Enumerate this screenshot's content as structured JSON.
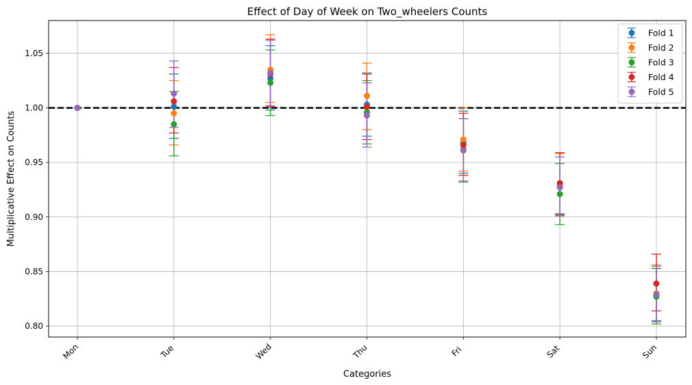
{
  "chart_data": {
    "type": "scatter",
    "title": "Effect of Day of Week on Two_wheelers Counts",
    "xlabel": "Categories",
    "ylabel": "Multiplicative Effect on Counts",
    "categories": [
      "Mon",
      "Tue",
      "Wed",
      "Thu",
      "Fri",
      "Sat",
      "Sun"
    ],
    "ylim": [
      0.79,
      1.08
    ],
    "yticks": [
      "0.80",
      "0.85",
      "0.90",
      "0.95",
      "1.00",
      "1.05"
    ],
    "reference_line": 1.0,
    "grid": true,
    "legend_position": "top-right",
    "series": [
      {
        "name": "Fold 1",
        "color": "#1f77b4",
        "values": [
          1.0,
          1.001,
          1.027,
          1.003,
          0.968,
          0.928,
          0.828
        ],
        "lower": [
          1.0,
          0.972,
          0.998,
          0.974,
          0.94,
          0.903,
          0.805
        ],
        "upper": [
          1.0,
          1.031,
          1.057,
          1.032,
          0.997,
          0.955,
          0.853
        ]
      },
      {
        "name": "Fold 2",
        "color": "#ff7f0e",
        "values": [
          1.0,
          0.995,
          1.035,
          1.011,
          0.971,
          0.93,
          0.83
        ],
        "lower": [
          1.0,
          0.966,
          1.005,
          0.98,
          0.942,
          0.902,
          0.804
        ],
        "upper": [
          1.0,
          1.025,
          1.067,
          1.041,
          1.0,
          0.958,
          0.856
        ]
      },
      {
        "name": "Fold 3",
        "color": "#2ca02c",
        "values": [
          1.0,
          0.985,
          1.023,
          0.996,
          0.962,
          0.921,
          0.827
        ],
        "lower": [
          1.0,
          0.956,
          0.993,
          0.967,
          0.932,
          0.893,
          0.802
        ],
        "upper": [
          1.0,
          1.015,
          1.053,
          1.025,
          0.99,
          0.949,
          0.853
        ]
      },
      {
        "name": "Fold 4",
        "color": "#d62728",
        "values": [
          1.0,
          1.006,
          1.031,
          1.001,
          0.966,
          0.931,
          0.839
        ],
        "lower": [
          1.0,
          0.977,
          1.001,
          0.971,
          0.938,
          0.902,
          0.814
        ],
        "upper": [
          1.0,
          1.037,
          1.063,
          1.031,
          0.995,
          0.959,
          0.866
        ]
      },
      {
        "name": "Fold 5",
        "color": "#9467bd",
        "values": [
          1.0,
          1.013,
          1.032,
          0.993,
          0.961,
          0.927,
          0.829
        ],
        "lower": [
          1.0,
          0.982,
          1.002,
          0.964,
          0.933,
          0.901,
          0.804
        ],
        "upper": [
          1.0,
          1.043,
          1.062,
          1.023,
          0.99,
          0.955,
          0.855
        ]
      }
    ]
  }
}
